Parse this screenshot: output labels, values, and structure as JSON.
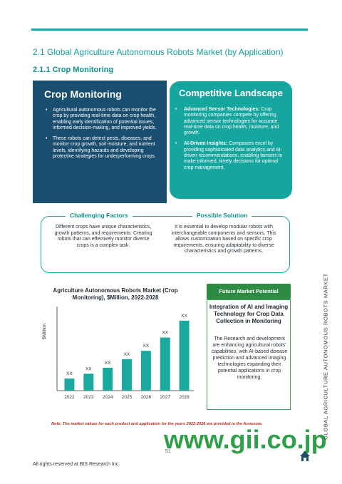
{
  "header": {
    "section_title": "2.1  Global Agriculture Autonomous Robots Market (by Application)",
    "subsection_title": "2.1.1 Crop Monitoring"
  },
  "left_panel": {
    "title": "Crop Monitoring",
    "bullets": [
      "Agricultural autonomous robots can monitor the crop by providing real-time data on crop health, enabling early identification of potential issues, informed decision-making, and improved yields.",
      "These robots can detect pests, diseases, and monitor crop growth, soil moisture, and nutrient levels, identifying hazards and developing protective strategies for underperforming crops."
    ]
  },
  "right_panel": {
    "title": "Competitive Landscape",
    "items": [
      {
        "bold": "Advanced Sensor Technologies:",
        "text": " Crop monitoring companies compete by offering advanced sensor technologies for accurate real-time data on crop health, moisture, and growth."
      },
      {
        "bold": "AI-Driven Insights:",
        "text": " Companies excel by providing sophisticated data analytics and AI-driven recommendations, enabling farmers to make informed, timely decisions for optimal crop management."
      }
    ]
  },
  "factors": {
    "challenging_label": "Challenging Factors",
    "challenging_text": "Different crops have unique characteristics, growth patterns, and requirements. Creating robots that can effectively monitor diverse crops is a complex task.",
    "solution_label": "Possible Solution",
    "solution_text": "It is essential to develop modular robots with interchangeable components and sensors. This allows customization based on specific crop requirements, ensuring adaptability to diverse characteristics and growth patterns."
  },
  "chart_data": {
    "type": "bar",
    "title": "Agriculture Autonomous Robots Market (Crop Monitoring), $Million, 2022-2028",
    "ylabel": "$Million",
    "xlabel": "",
    "categories": [
      "2022",
      "2023",
      "2024",
      "2025",
      "2026",
      "2027",
      "2028"
    ],
    "data_labels": [
      "XX",
      "XX",
      "XX",
      "XX",
      "XX",
      "XX",
      "XX"
    ],
    "values": [
      1,
      1.4,
      1.9,
      2.6,
      3.3,
      4.4,
      5.8
    ],
    "ylim": [
      0,
      6.5
    ],
    "color": "#1aa99e",
    "grid": false,
    "legend": "none"
  },
  "future_potential": {
    "tab_label": "Future Market Potential",
    "heading": "Integration of AI and Imaging Technology for Crop Data Collection in Monitoring",
    "body": "The Research and development are enhancing agricultural robots' capabilities, with AI-based disease prediction and advanced imaging technologies expanding their potential applications in crop monitoring."
  },
  "footer": {
    "note": "Note: The market values for each product and application for the years 2022-2028 are provided in the Annexure.",
    "watermark": "www.gii.co.jp",
    "page_number": "51",
    "copyright": "All rights reserved at BIS Research Inc.",
    "sidebar_text": "GLOBAL AGRICULTURE AUTONOMOUS ROBOTS MARKET"
  },
  "colors": {
    "teal": "#18a8a3",
    "navy": "#1a4e70",
    "green": "#2e8b43",
    "red_note": "#c0281e"
  }
}
